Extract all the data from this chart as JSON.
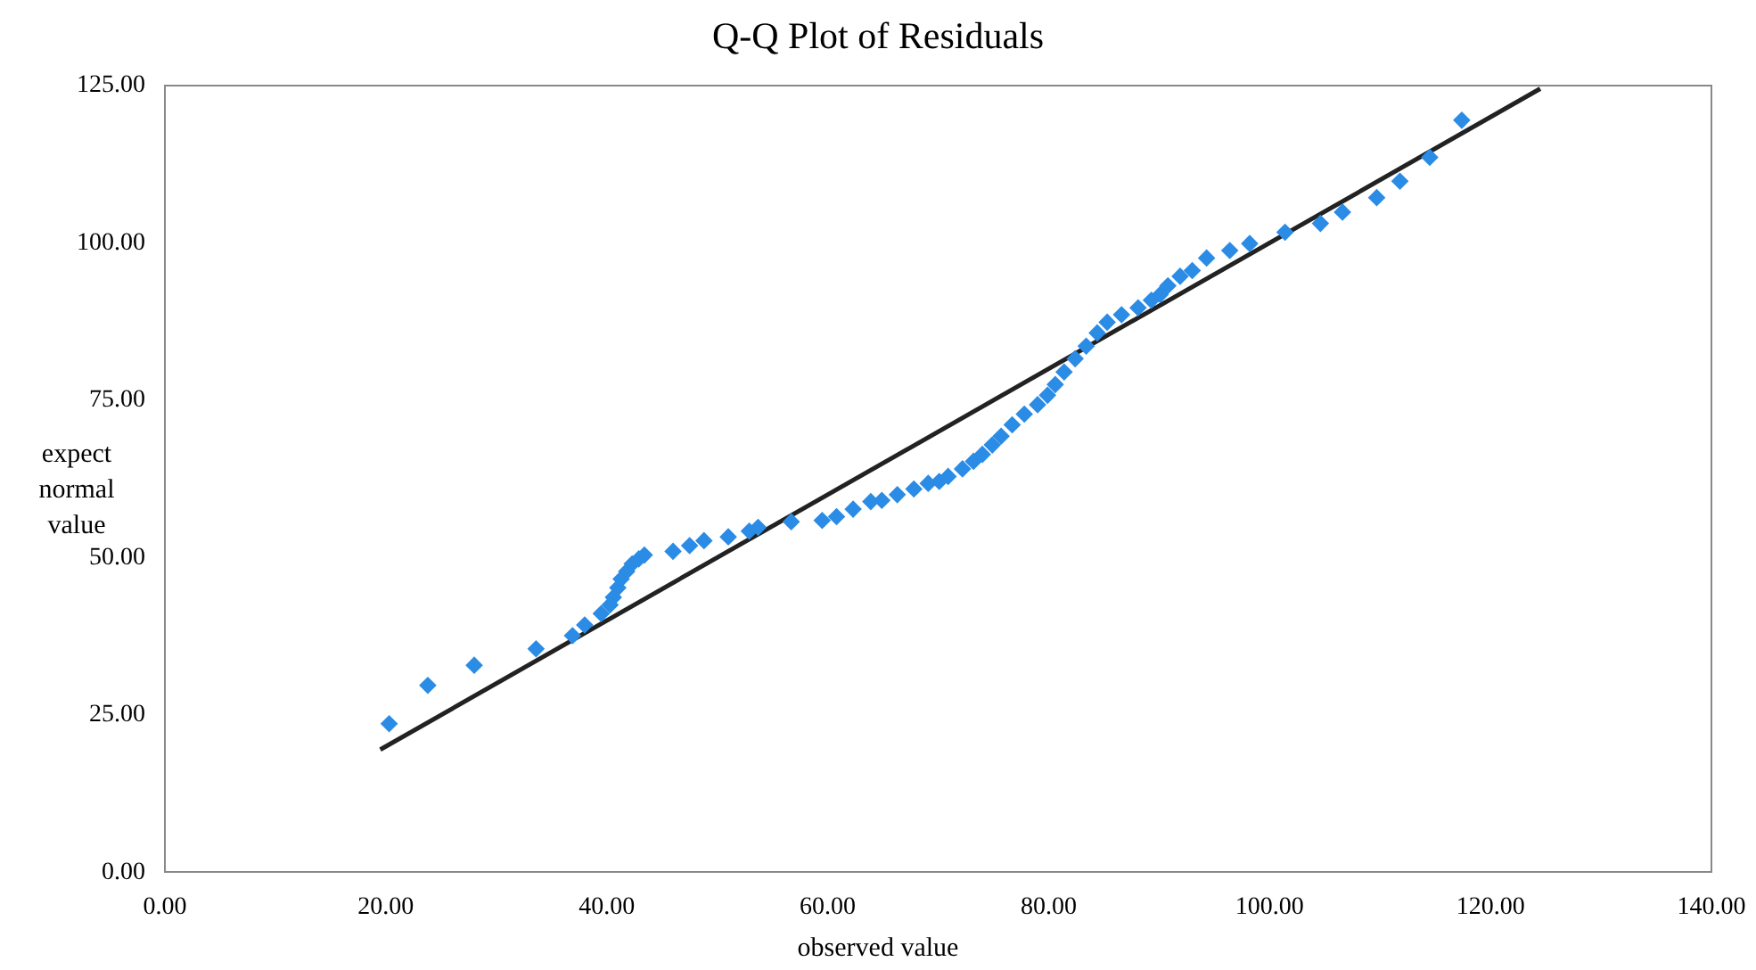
{
  "chart_data": {
    "type": "scatter",
    "title": "Q-Q Plot of Residuals",
    "xlabel": "observed value",
    "ylabel": "expect normal value",
    "xlim": [
      0,
      140
    ],
    "xticks": [
      {
        "value": 0,
        "label": "0.00"
      },
      {
        "value": 20,
        "label": "20.00"
      },
      {
        "value": 40,
        "label": "40.00"
      },
      {
        "value": 60,
        "label": "60.00"
      },
      {
        "value": 80,
        "label": "80.00"
      },
      {
        "value": 100,
        "label": "100.00"
      },
      {
        "value": 120,
        "label": "120.00"
      },
      {
        "value": 140,
        "label": "140.00"
      }
    ],
    "ylim": [
      0,
      125
    ],
    "yticks": [
      {
        "value": 0,
        "label": "0.00"
      },
      {
        "value": 25,
        "label": "25.00"
      },
      {
        "value": 50,
        "label": "50.00"
      },
      {
        "value": 75,
        "label": "75.00"
      },
      {
        "value": 100,
        "label": "100.00"
      },
      {
        "value": 125,
        "label": "125.00"
      }
    ],
    "grid": false,
    "legend": false,
    "marker": "diamond",
    "series": [
      {
        "color": "#2b8ce6",
        "x": [
          20.3,
          23.8,
          28,
          33.6,
          36.9,
          38,
          39.5,
          40.3,
          40.6,
          41,
          41.3,
          41.8,
          42.3,
          42.9,
          43.4,
          46,
          47.5,
          48.8,
          51,
          52.9,
          53.7,
          56.7,
          59.5,
          60.8,
          62.3,
          63.9,
          64.9,
          66.3,
          67.8,
          69.1,
          70.1,
          70.9,
          72.2,
          73.2,
          74,
          74.9,
          75.7,
          76.7,
          77.8,
          79,
          79.9,
          80.6,
          81.4,
          82.4,
          83.4,
          84.4,
          85.3,
          86.6,
          88.1,
          89.3,
          90.1,
          90.8,
          91.9,
          93,
          94.3,
          96.4,
          98.2,
          101.4,
          104.6,
          106.6,
          109.7,
          111.8,
          114.5,
          117.4
        ],
        "values": [
          23.6,
          29.7,
          32.9,
          35.5,
          37.6,
          39.3,
          41.1,
          42.5,
          43.7,
          45.2,
          46.6,
          47.8,
          49,
          49.8,
          50.4,
          51,
          51.9,
          52.7,
          53.3,
          54.2,
          54.8,
          55.7,
          55.9,
          56.5,
          57.7,
          58.9,
          59.1,
          60,
          60.9,
          61.8,
          62.1,
          62.9,
          64.1,
          65.3,
          66.4,
          67.9,
          69.3,
          71.1,
          72.8,
          74.3,
          75.8,
          77.5,
          79.5,
          81.6,
          83.6,
          85.7,
          87.4,
          88.6,
          89.7,
          90.9,
          91.8,
          93.2,
          94.7,
          95.6,
          97.6,
          98.8,
          99.9,
          101.7,
          103.1,
          104.9,
          107.2,
          109.8,
          113.6,
          119.5
        ]
      },
      {
        "type": "line",
        "color": "#222222",
        "marker": "none",
        "x": [
          19.5,
          124.5
        ],
        "values": [
          19.5,
          124.5
        ]
      }
    ]
  }
}
